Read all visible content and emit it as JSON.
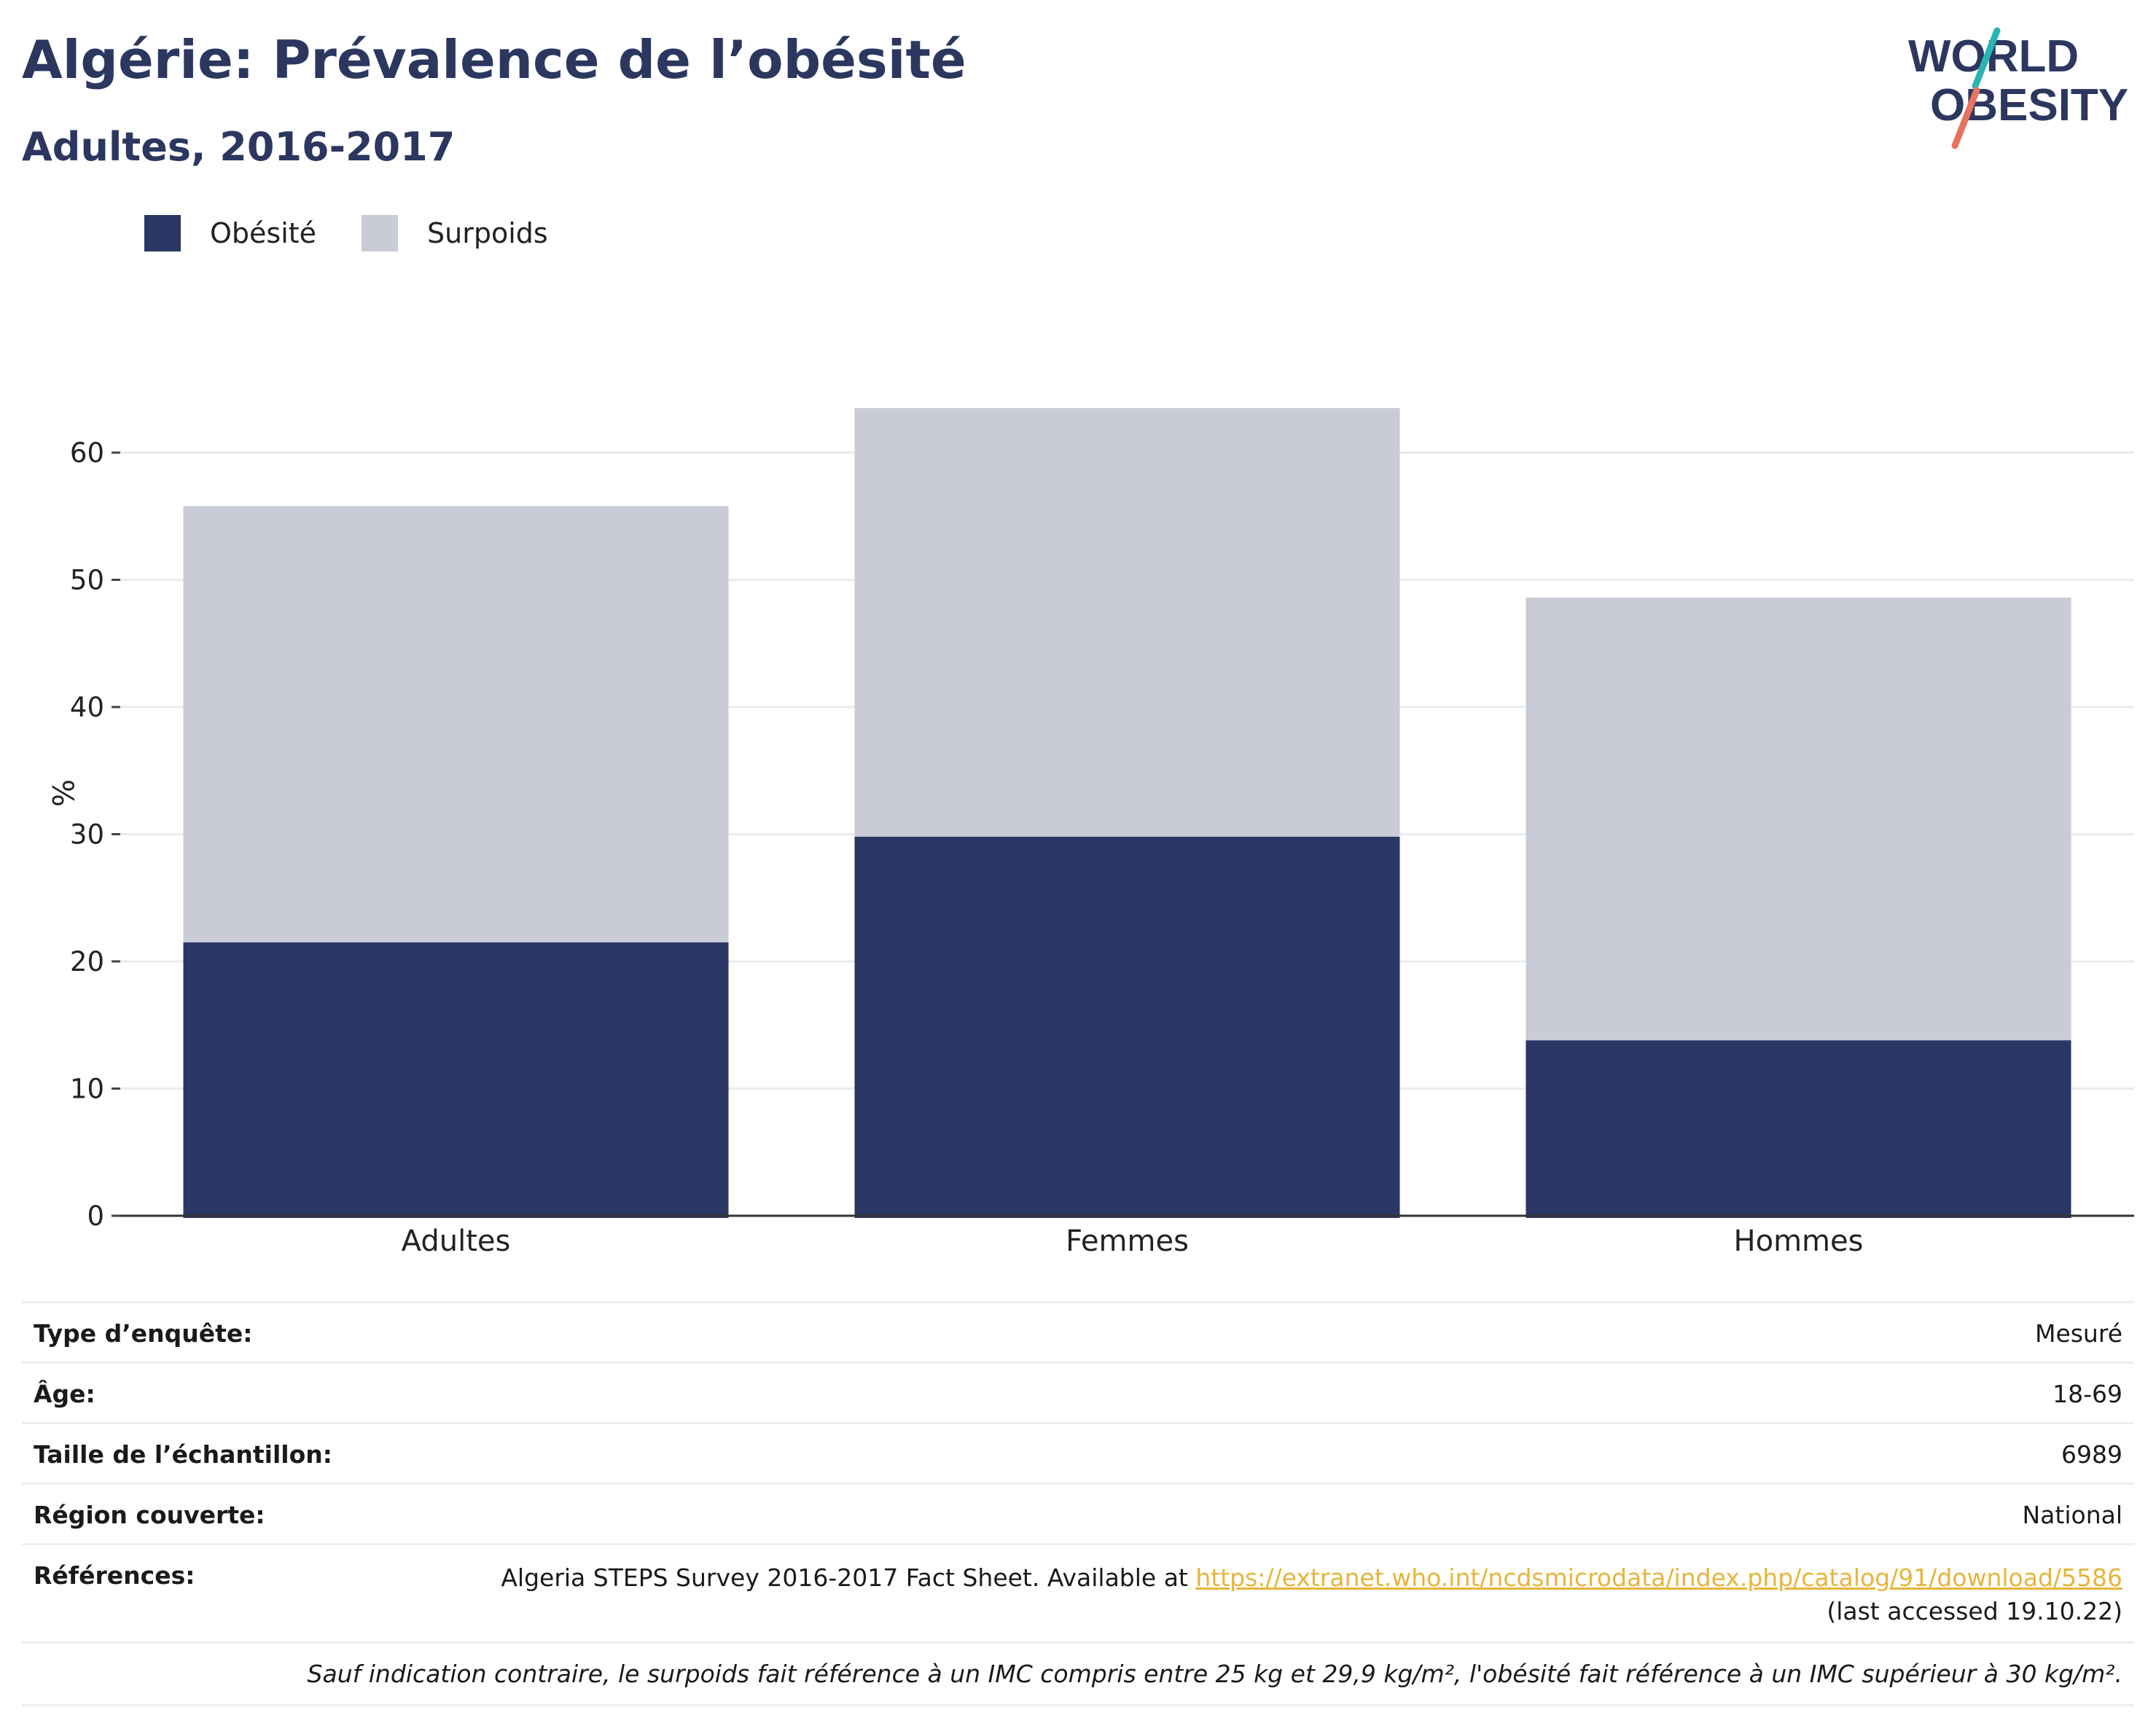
{
  "header": {
    "title": "Algérie: Prévalence de l’obésité",
    "subtitle": "Adultes, 2016-2017"
  },
  "logo": {
    "line1": "WORLD",
    "line2": "OBESITY",
    "colors": {
      "text": "#2c3760",
      "slash_top": "#2bb5b0",
      "slash_bottom": "#e8715f"
    }
  },
  "legend": {
    "items": [
      {
        "label": "Obésité",
        "color": "#2a3664"
      },
      {
        "label": "Surpoids",
        "color": "#c9cbd6"
      }
    ]
  },
  "chart_data": {
    "type": "bar",
    "stacked": true,
    "categories": [
      "Adultes",
      "Femmes",
      "Hommes"
    ],
    "series": [
      {
        "name": "Obésité",
        "values": [
          21.5,
          29.8,
          13.8
        ],
        "color": "#2a3664"
      },
      {
        "name": "Surpoids",
        "values": [
          34.3,
          33.7,
          34.8
        ],
        "color": "#c9cbd6"
      }
    ],
    "ylabel": "%",
    "ylim": [
      0,
      67
    ],
    "yticks": [
      0,
      10,
      20,
      30,
      40,
      50,
      60
    ],
    "grid": true,
    "legend_position": "top-left"
  },
  "meta": {
    "rows": [
      {
        "label": "Type d’enquête:",
        "value": "Mesuré"
      },
      {
        "label": "Âge:",
        "value": "18-69"
      },
      {
        "label": "Taille de l’échantillon:",
        "value": "6989"
      },
      {
        "label": "Région couverte:",
        "value": "National"
      }
    ],
    "references": {
      "label": "Références:",
      "text": "Algeria STEPS Survey 2016-2017 Fact Sheet. Available at ",
      "link": "https://extranet.who.int/ncdsmicrodata/index.php/catalog/91/download/5586",
      "accessed": "(last accessed 19.10.22)"
    },
    "footnote": "Sauf indication contraire, le surpoids fait référence à un IMC compris entre 25 kg et 29,9 kg/m², l'obésité fait référence à un IMC supérieur à 30 kg/m²."
  }
}
